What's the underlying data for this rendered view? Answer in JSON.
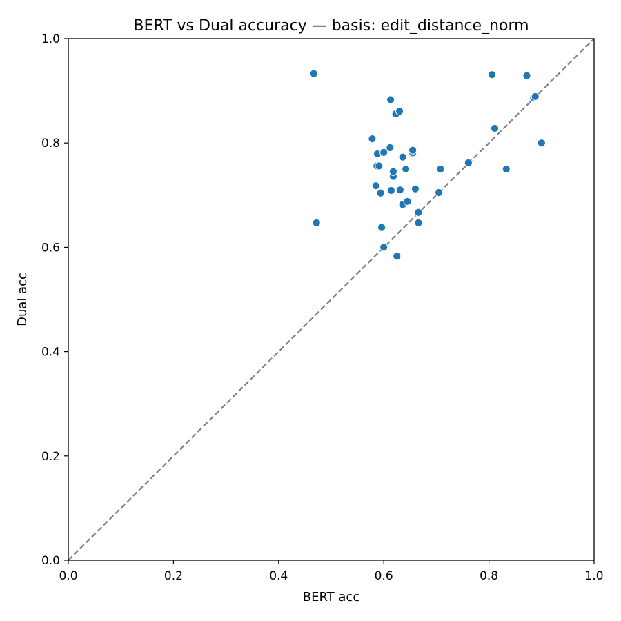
{
  "chart_data": {
    "type": "scatter",
    "title": "BERT vs Dual accuracy — basis: edit_distance_norm",
    "xlabel": "BERT acc",
    "ylabel": "Dual acc",
    "xlim": [
      0.0,
      1.0
    ],
    "ylim": [
      0.0,
      1.0
    ],
    "xticks": [
      "0.0",
      "0.2",
      "0.4",
      "0.6",
      "0.8",
      "1.0"
    ],
    "yticks": [
      "0.0",
      "0.2",
      "0.4",
      "0.6",
      "0.8",
      "1.0"
    ],
    "grid": false,
    "reference_line": {
      "from": [
        0.0,
        0.0
      ],
      "to": [
        1.0,
        1.0
      ],
      "style": "dashed",
      "color": "#808080"
    },
    "marker_color": "#1f77b4",
    "points": [
      {
        "x": 0.467,
        "y": 0.933
      },
      {
        "x": 0.472,
        "y": 0.647
      },
      {
        "x": 0.578,
        "y": 0.808
      },
      {
        "x": 0.585,
        "y": 0.718
      },
      {
        "x": 0.588,
        "y": 0.779
      },
      {
        "x": 0.587,
        "y": 0.756
      },
      {
        "x": 0.591,
        "y": 0.756
      },
      {
        "x": 0.594,
        "y": 0.704
      },
      {
        "x": 0.596,
        "y": 0.638
      },
      {
        "x": 0.6,
        "y": 0.782
      },
      {
        "x": 0.6,
        "y": 0.6
      },
      {
        "x": 0.612,
        "y": 0.791
      },
      {
        "x": 0.613,
        "y": 0.883
      },
      {
        "x": 0.614,
        "y": 0.709
      },
      {
        "x": 0.618,
        "y": 0.736
      },
      {
        "x": 0.618,
        "y": 0.745
      },
      {
        "x": 0.623,
        "y": 0.856
      },
      {
        "x": 0.625,
        "y": 0.583
      },
      {
        "x": 0.63,
        "y": 0.861
      },
      {
        "x": 0.631,
        "y": 0.71
      },
      {
        "x": 0.636,
        "y": 0.773
      },
      {
        "x": 0.636,
        "y": 0.682
      },
      {
        "x": 0.642,
        "y": 0.75
      },
      {
        "x": 0.645,
        "y": 0.688
      },
      {
        "x": 0.655,
        "y": 0.781
      },
      {
        "x": 0.655,
        "y": 0.786
      },
      {
        "x": 0.66,
        "y": 0.712
      },
      {
        "x": 0.666,
        "y": 0.667
      },
      {
        "x": 0.666,
        "y": 0.647
      },
      {
        "x": 0.705,
        "y": 0.705
      },
      {
        "x": 0.708,
        "y": 0.75
      },
      {
        "x": 0.761,
        "y": 0.762
      },
      {
        "x": 0.806,
        "y": 0.931
      },
      {
        "x": 0.811,
        "y": 0.828
      },
      {
        "x": 0.833,
        "y": 0.75
      },
      {
        "x": 0.872,
        "y": 0.929
      },
      {
        "x": 0.885,
        "y": 0.886
      },
      {
        "x": 0.888,
        "y": 0.889
      },
      {
        "x": 0.9,
        "y": 0.8
      }
    ]
  }
}
